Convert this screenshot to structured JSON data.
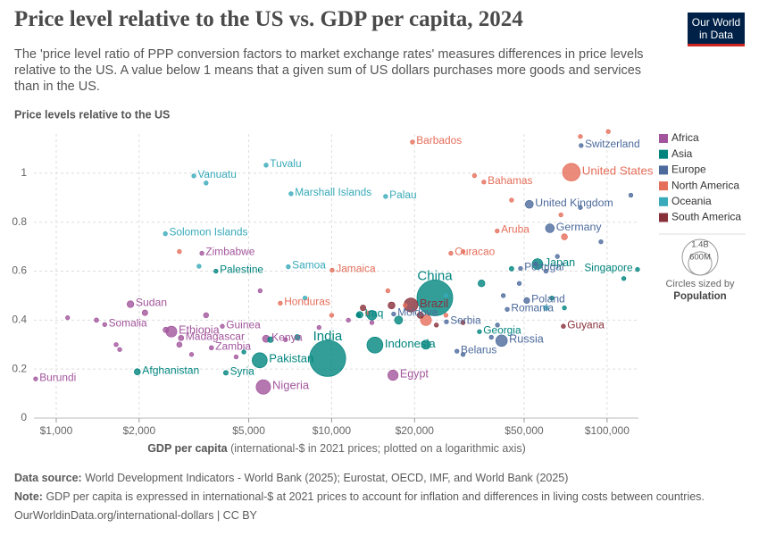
{
  "chart_data": {
    "type": "scatter",
    "title": "Price level relative to the US vs. GDP per capita, 2024",
    "subtitle": "The 'price level ratio of PPP conversion factors to market exchange rates' measures differences in price levels relative to the US. A value below 1 means that a given sum of US dollars purchases more goods and services than in the US.",
    "y_label": "Price levels relative to the US",
    "x_label_bold": "GDP per capita",
    "x_label": "(international-$ in 2021 prices; plotted on a logarithmic axis)",
    "log_x": true,
    "grid": true,
    "xlim": [
      830,
      130000
    ],
    "ylim": [
      0,
      1.16
    ],
    "xticks": [
      {
        "value": 1000,
        "label": "$1,000"
      },
      {
        "value": 2000,
        "label": "$2,000"
      },
      {
        "value": 5000,
        "label": "$5,000"
      },
      {
        "value": 10000,
        "label": "$10,000"
      },
      {
        "value": 20000,
        "label": "$20,000"
      },
      {
        "value": 50000,
        "label": "$50,000"
      },
      {
        "value": 100000,
        "label": "$100,000"
      }
    ],
    "yticks": [
      0,
      0.2,
      0.4,
      0.6,
      0.8,
      1
    ],
    "series": [
      {
        "name": "Africa",
        "color": "#a2559c",
        "x": [
          3380,
          1860,
          1500,
          2620,
          4010,
          2840,
          3660,
          5780,
          5650,
          842,
          16700,
          1100,
          1400,
          1650,
          1700,
          2100,
          2500,
          2800,
          3100,
          3500,
          4500,
          5500,
          6800,
          9000,
          11500,
          14000
        ],
        "values": [
          0.673,
          0.465,
          0.382,
          0.353,
          0.375,
          0.327,
          0.287,
          0.324,
          0.127,
          0.16,
          0.175,
          0.41,
          0.4,
          0.3,
          0.28,
          0.43,
          0.36,
          0.3,
          0.26,
          0.42,
          0.25,
          0.52,
          0.32,
          0.37,
          0.4,
          0.39
        ],
        "sizes": [
          17000000,
          50000000,
          19000000,
          130000000,
          14000000,
          31000000,
          21000000,
          56000000,
          230000000,
          14000000,
          116000000,
          6000000,
          21000000,
          13000000,
          9000000,
          34000000,
          33000000,
          30000000,
          2000000,
          29000000,
          18000000,
          2500000,
          3000000,
          6000000,
          2600000,
          1300000
        ],
        "labels": [
          "Zimbabwe",
          "Sudan",
          "Somalia",
          "Ethiopia",
          "Guinea",
          "Madagascar",
          "Zambia",
          "Kenya",
          "Nigeria",
          "Burundi",
          "Egypt",
          null,
          null,
          null,
          null,
          null,
          null,
          null,
          null,
          null,
          null,
          null,
          null,
          null,
          null,
          null
        ]
      },
      {
        "name": "Asia",
        "color": "#00847e",
        "x": [
          3800,
          1970,
          4130,
          5480,
          9670,
          12650,
          14360,
          23700,
          34400,
          55900,
          129000,
          4800,
          6000,
          7500,
          12500,
          14000,
          17500,
          22000,
          35000,
          45000,
          63000,
          70000,
          115000
        ],
        "values": [
          0.6,
          0.189,
          0.185,
          0.236,
          0.244,
          0.422,
          0.298,
          0.491,
          0.353,
          0.629,
          0.607,
          0.27,
          0.32,
          0.33,
          0.42,
          0.42,
          0.4,
          0.3,
          0.55,
          0.61,
          0.49,
          0.45,
          0.57
        ],
        "sizes": [
          5000000,
          42000000,
          24000000,
          250000000,
          1440000000,
          46000000,
          280000000,
          1410000000,
          3800000,
          124000000,
          6000000,
          10000000,
          35000000,
          33000000,
          20000000,
          100000000,
          71000000,
          90000000,
          51000000,
          23000000,
          10000000,
          5000000,
          3000000
        ],
        "labels": [
          "Palestine",
          "Afghanistan",
          "Syria",
          "Pakistan",
          "India",
          "Iraq",
          "Indonesia",
          "China",
          "Georgia",
          "Japan",
          "Singapore",
          null,
          null,
          null,
          null,
          null,
          null,
          null,
          null,
          null,
          null,
          null,
          null
        ]
      },
      {
        "name": "Europe",
        "color": "#4c6a9c",
        "x": [
          80500,
          52200,
          62000,
          48500,
          51100,
          43400,
          26100,
          16800,
          28500,
          41400,
          30000,
          40000,
          42000,
          48000,
          55000,
          60000,
          66000,
          80000,
          95000,
          122000,
          38000
        ],
        "values": [
          1.113,
          0.873,
          0.775,
          0.611,
          0.48,
          0.444,
          0.393,
          0.425,
          0.273,
          0.316,
          0.26,
          0.38,
          0.5,
          0.55,
          0.63,
          0.6,
          0.66,
          0.86,
          0.72,
          0.91,
          0.33
        ],
        "sizes": [
          8900000,
          69000000,
          84000000,
          10000000,
          37000000,
          19000000,
          6600000,
          2500000,
          9000000,
          144000000,
          2800000,
          2000000,
          4000000,
          10000000,
          5000000,
          1300000,
          9000000,
          6000000,
          11000000,
          600000,
          6000000
        ],
        "labels": [
          "Switzerland",
          "United Kingdom",
          "Germany",
          "Portugal",
          "Poland",
          "Romania",
          "Serbia",
          "Moldova",
          "Belarus",
          "Russia",
          null,
          null,
          null,
          null,
          null,
          null,
          null,
          null,
          null,
          null,
          null
        ]
      },
      {
        "name": "North America",
        "color": "#e56e5a",
        "x": [
          19650,
          74200,
          35700,
          39900,
          27100,
          10040,
          6510,
          2800,
          10000,
          13500,
          16000,
          18500,
          22000,
          26000,
          30000,
          33000,
          45000,
          68000,
          70000,
          80000,
          101000
        ],
        "values": [
          1.127,
          1.004,
          0.964,
          0.764,
          0.673,
          0.604,
          0.469,
          0.68,
          0.42,
          0.43,
          0.52,
          0.46,
          0.4,
          0.42,
          0.68,
          0.99,
          0.89,
          0.83,
          0.74,
          1.15,
          1.17
        ],
        "sizes": [
          280000,
          340000000,
          400000,
          100000,
          150000,
          2800000,
          10600000,
          11700000,
          18000000,
          11000000,
          5200000,
          6300000,
          130000000,
          11000000,
          4400000,
          100000,
          100000,
          100000,
          40000000,
          60000,
          60000
        ],
        "labels": [
          "Barbados",
          "United States",
          "Bahamas",
          "Aruba",
          "Curacao",
          "Jamaica",
          "Honduras",
          null,
          null,
          null,
          null,
          null,
          null,
          null,
          null,
          null,
          null,
          null,
          null,
          null,
          null
        ]
      },
      {
        "name": "Oceania",
        "color": "#38aaba",
        "x": [
          5780,
          3160,
          2490,
          6960,
          7120,
          15700,
          3500,
          3300,
          8000,
          26000,
          60000
        ],
        "values": [
          1.033,
          0.989,
          0.753,
          0.618,
          0.916,
          0.905,
          0.96,
          0.62,
          0.49,
          0.5,
          0.45
        ],
        "sizes": [
          11000,
          330000,
          800000,
          220000,
          40000,
          18000,
          130000,
          10000000,
          900000,
          5300000,
          27000000
        ],
        "labels": [
          "Tuvalu",
          "Vanuatu",
          "Solomon Islands",
          "Samoa",
          "Marshall Islands",
          "Palau",
          null,
          null,
          null,
          null,
          null
        ]
      },
      {
        "name": "South America",
        "color": "#883039",
        "x": [
          19400,
          69400,
          13000,
          16500,
          21000,
          24000,
          30000
        ],
        "values": [
          0.462,
          0.375,
          0.45,
          0.46,
          0.42,
          0.38,
          0.39
        ],
        "sizes": [
          211000000,
          800000,
          34000000,
          52000000,
          45000000,
          18000000,
          3400000
        ],
        "labels": [
          "Brazil",
          "Guyana",
          null,
          null,
          null,
          null,
          null
        ]
      }
    ],
    "size_legend": {
      "title": "Circles sized by",
      "variable": "Population",
      "values": [
        {
          "value": 1400000000,
          "label": "1.4B"
        },
        {
          "value": 600000000,
          "label": "600M"
        }
      ]
    },
    "source_label": "Data source:",
    "source": "World Development Indicators - World Bank (2025); Eurostat, OECD, IMF, and World Bank (2025)",
    "note_label": "Note:",
    "note": "GDP per capita is expressed in international-$ at 2021 prices to account for inflation and differences in living costs between countries.",
    "url": "OurWorldinData.org/international-dollars | CC BY",
    "logo": [
      "Our World",
      "in Data"
    ]
  }
}
